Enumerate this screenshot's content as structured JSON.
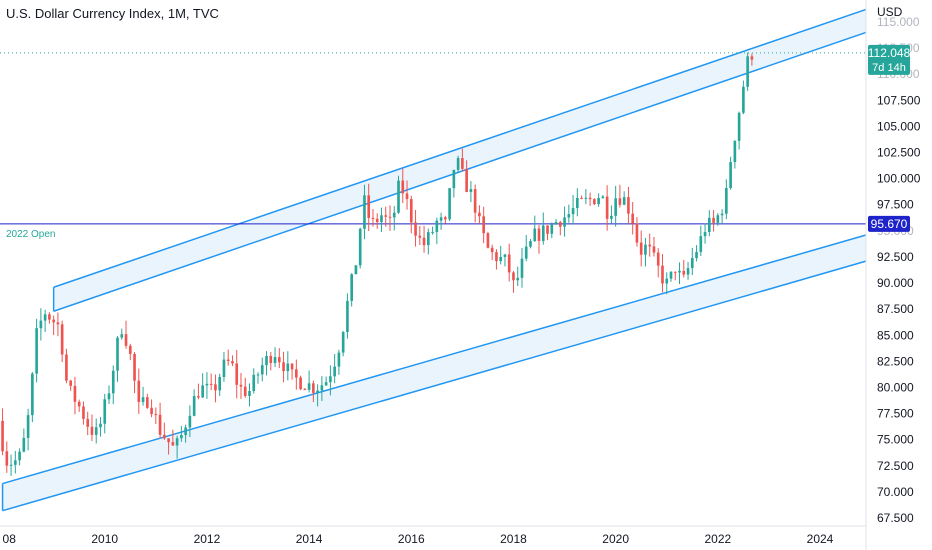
{
  "header": {
    "title": "U.S. Dollar Currency Index, 1M, TVC",
    "currency": "USD"
  },
  "colors": {
    "up": "#26a69a",
    "down": "#ef5350",
    "channel_line": "#2196f3",
    "channel_fill": "#e3f0fc",
    "open_line": "#1e22c9",
    "open_label": "#1e22c9",
    "price_badge": "#26a69a"
  },
  "chart_data": {
    "type": "candlestick",
    "title": "U.S. Dollar Currency Index, 1M, TVC",
    "x_ticks": [
      "08",
      "2010",
      "2012",
      "2014",
      "2016",
      "2018",
      "2020",
      "2022",
      "2024"
    ],
    "y_ticks": [
      "115.000",
      "112.500",
      "110.000",
      "107.500",
      "105.000",
      "102.500",
      "100.000",
      "97.500",
      "95.000",
      "92.500",
      "90.000",
      "87.500",
      "85.000",
      "82.500",
      "80.000",
      "77.500",
      "75.000",
      "72.500",
      "70.000",
      "67.500"
    ],
    "ylim": [
      67.5,
      115
    ],
    "xlim": [
      2007.95,
      2024.9
    ],
    "last_price": {
      "value": 112.048,
      "label": "112.048",
      "countdown": "7d 14h"
    },
    "open_2022": {
      "value": 95.67,
      "label": "95.670",
      "text": "2022 Open"
    },
    "channels": [
      {
        "name": "upper",
        "a_start": [
          2009.0,
          89.6
        ],
        "a_end": [
          2024.9,
          116.2
        ],
        "b_start": [
          2009.0,
          87.3
        ],
        "b_end": [
          2024.9,
          114.0
        ]
      },
      {
        "name": "lower",
        "a_start": [
          2008.0,
          70.8
        ],
        "a_end": [
          2024.9,
          94.6
        ],
        "b_start": [
          2008.0,
          68.2
        ],
        "b_end": [
          2024.9,
          92.1
        ]
      }
    ],
    "anchors": [
      [
        2008.0,
        76.8
      ],
      [
        2008.15,
        73.0
      ],
      [
        2008.3,
        72.8
      ],
      [
        2008.45,
        73.5
      ],
      [
        2008.6,
        77.5
      ],
      [
        2008.75,
        85.0
      ],
      [
        2008.9,
        87.3
      ],
      [
        2009.05,
        86.5
      ],
      [
        2009.2,
        85.8
      ],
      [
        2009.35,
        80.0
      ],
      [
        2009.55,
        78.5
      ],
      [
        2009.8,
        76.0
      ],
      [
        2009.95,
        75.5
      ],
      [
        2010.2,
        80.5
      ],
      [
        2010.4,
        86.0
      ],
      [
        2010.55,
        84.0
      ],
      [
        2010.75,
        78.0
      ],
      [
        2010.95,
        79.0
      ],
      [
        2011.15,
        76.0
      ],
      [
        2011.3,
        75.0
      ],
      [
        2011.45,
        74.0
      ],
      [
        2011.6,
        75.5
      ],
      [
        2011.75,
        78.0
      ],
      [
        2011.95,
        80.0
      ],
      [
        2012.2,
        79.5
      ],
      [
        2012.4,
        82.0
      ],
      [
        2012.55,
        82.5
      ],
      [
        2012.7,
        80.0
      ],
      [
        2012.9,
        79.5
      ],
      [
        2013.15,
        82.0
      ],
      [
        2013.4,
        83.5
      ],
      [
        2013.55,
        82.5
      ],
      [
        2013.75,
        81.0
      ],
      [
        2013.95,
        80.5
      ],
      [
        2014.2,
        80.0
      ],
      [
        2014.4,
        80.5
      ],
      [
        2014.55,
        82.0
      ],
      [
        2014.7,
        84.5
      ],
      [
        2014.85,
        88.5
      ],
      [
        2015.0,
        92.0
      ],
      [
        2015.15,
        98.0
      ],
      [
        2015.3,
        95.5
      ],
      [
        2015.5,
        96.5
      ],
      [
        2015.7,
        95.5
      ],
      [
        2015.85,
        99.5
      ],
      [
        2015.95,
        98.5
      ],
      [
        2016.1,
        96.0
      ],
      [
        2016.3,
        93.5
      ],
      [
        2016.45,
        94.5
      ],
      [
        2016.6,
        96.0
      ],
      [
        2016.75,
        95.5
      ],
      [
        2016.85,
        99.0
      ],
      [
        2016.95,
        102.0
      ],
      [
        2017.1,
        100.0
      ],
      [
        2017.3,
        98.0
      ],
      [
        2017.45,
        95.0
      ],
      [
        2017.6,
        93.0
      ],
      [
        2017.75,
        92.5
      ],
      [
        2017.95,
        92.0
      ],
      [
        2018.1,
        89.5
      ],
      [
        2018.3,
        92.5
      ],
      [
        2018.5,
        94.5
      ],
      [
        2018.7,
        95.0
      ],
      [
        2018.95,
        96.0
      ],
      [
        2019.15,
        96.5
      ],
      [
        2019.35,
        97.5
      ],
      [
        2019.6,
        98.0
      ],
      [
        2019.8,
        98.5
      ],
      [
        2019.95,
        96.5
      ],
      [
        2020.1,
        98.5
      ],
      [
        2020.25,
        98.0
      ],
      [
        2020.4,
        96.5
      ],
      [
        2020.55,
        93.0
      ],
      [
        2020.7,
        93.5
      ],
      [
        2020.85,
        92.0
      ],
      [
        2021.0,
        90.5
      ],
      [
        2021.1,
        89.8
      ],
      [
        2021.25,
        91.5
      ],
      [
        2021.4,
        90.0
      ],
      [
        2021.55,
        92.0
      ],
      [
        2021.7,
        93.5
      ],
      [
        2021.85,
        95.5
      ],
      [
        2022.0,
        95.6
      ],
      [
        2022.15,
        97.0
      ],
      [
        2022.25,
        98.5
      ],
      [
        2022.35,
        102.5
      ],
      [
        2022.45,
        105.0
      ],
      [
        2022.55,
        108.0
      ],
      [
        2022.62,
        110.0
      ],
      [
        2022.7,
        112.0
      ]
    ]
  }
}
